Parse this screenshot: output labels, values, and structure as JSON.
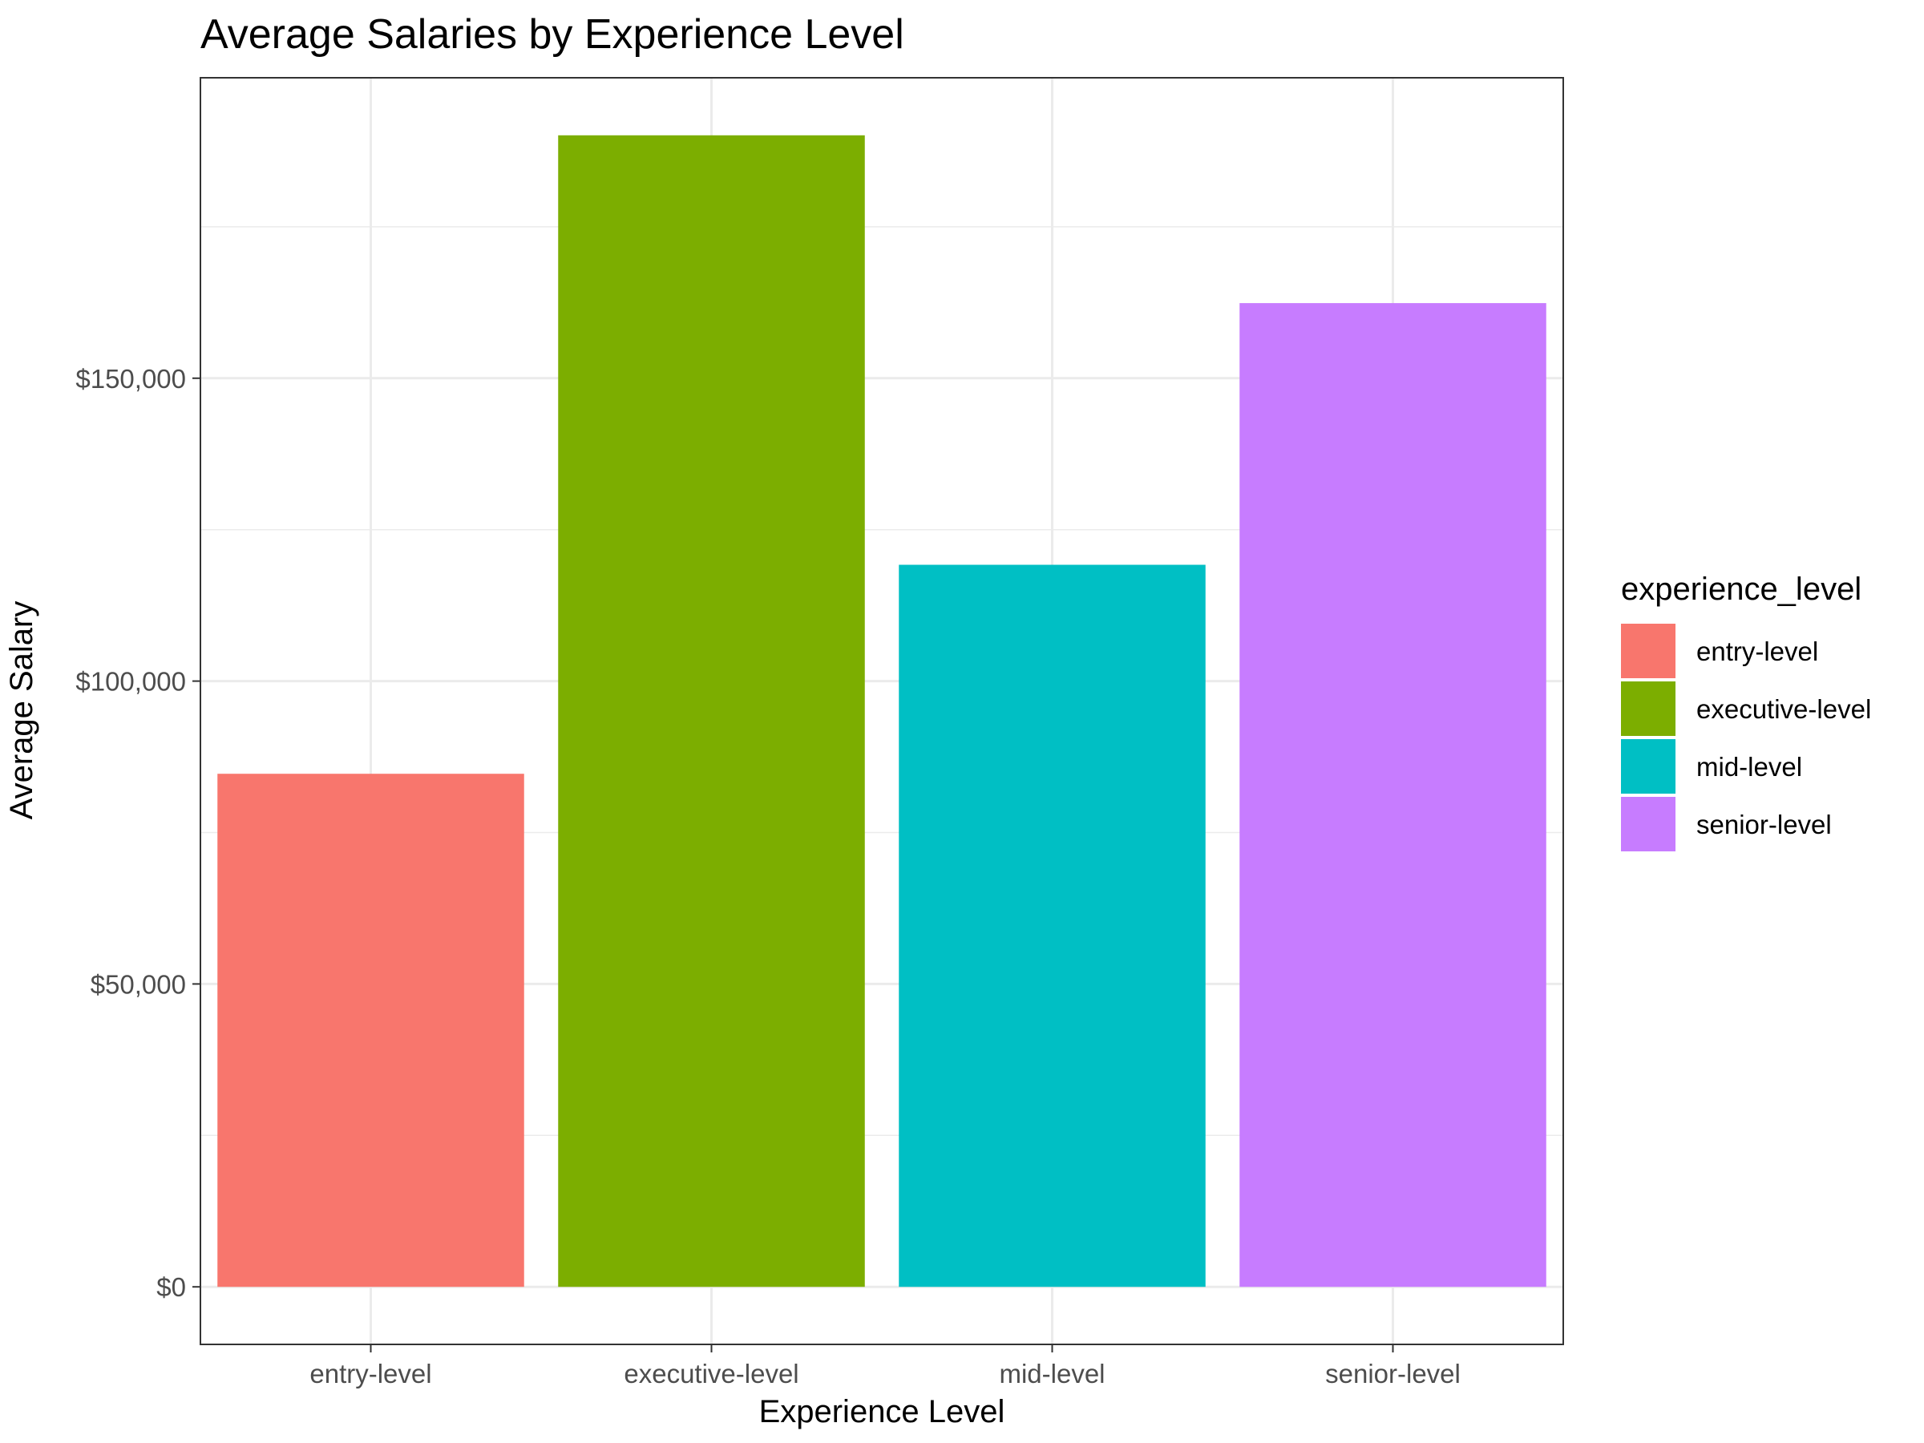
{
  "chart_data": {
    "type": "bar",
    "title": "Average Salaries by Experience Level",
    "xlabel": "Experience Level",
    "ylabel": "Average Salary",
    "categories": [
      "entry-level",
      "executive-level",
      "mid-level",
      "senior-level"
    ],
    "values": [
      84700,
      190100,
      119200,
      162400
    ],
    "colors": [
      "#F8766D",
      "#7CAE00",
      "#00BFC4",
      "#C77CFF"
    ],
    "ylim": [
      -9500,
      199600
    ],
    "y_ticks": [
      0,
      50000,
      100000,
      150000
    ],
    "y_tick_labels": [
      "$0",
      "$50,000",
      "$100,000",
      "$150,000"
    ],
    "grid": true,
    "legend": {
      "title": "experience_level",
      "placement": "right",
      "items": [
        "entry-level",
        "executive-level",
        "mid-level",
        "senior-level"
      ]
    }
  }
}
